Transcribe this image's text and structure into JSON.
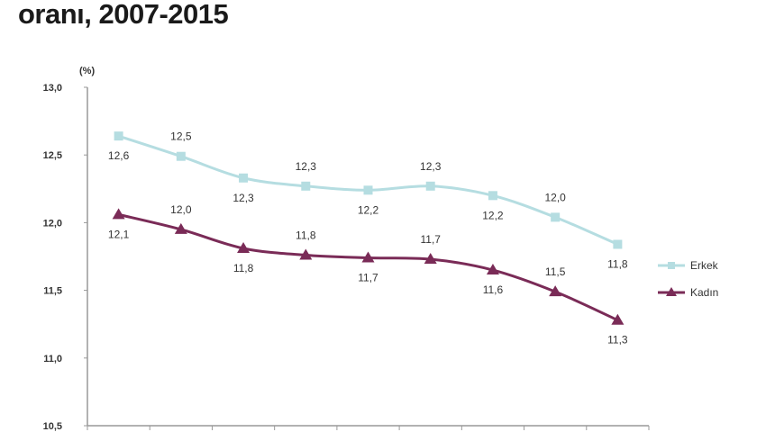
{
  "chart_data": {
    "type": "line",
    "title": "oranı, 2007-2015",
    "ylabel": "(%)",
    "ylim": [
      10.5,
      13.0
    ],
    "yticks": [
      "10,5",
      "11,0",
      "11,5",
      "12,0",
      "12,5",
      "13,0"
    ],
    "grid": false,
    "legend": "right",
    "series": [
      {
        "name": "Erkek",
        "color": "#b5dde1",
        "marker": "square",
        "values": [
          12.64,
          12.49,
          12.33,
          12.27,
          12.24,
          12.27,
          12.2,
          12.04,
          11.84
        ],
        "labels": [
          "12,6",
          "12,5",
          "12,3",
          "12,3",
          "12,2",
          "12,3",
          "12,2",
          "12,0",
          "11,8"
        ]
      },
      {
        "name": "Kadın",
        "color": "#7a2b57",
        "marker": "triangle",
        "values": [
          12.06,
          11.95,
          11.81,
          11.76,
          11.74,
          11.73,
          11.65,
          11.49,
          11.28
        ],
        "labels": [
          "12,1",
          "12,0",
          "11,8",
          "11,8",
          "11,7",
          "11,7",
          "11,6",
          "11,5",
          "11,3"
        ]
      }
    ]
  }
}
